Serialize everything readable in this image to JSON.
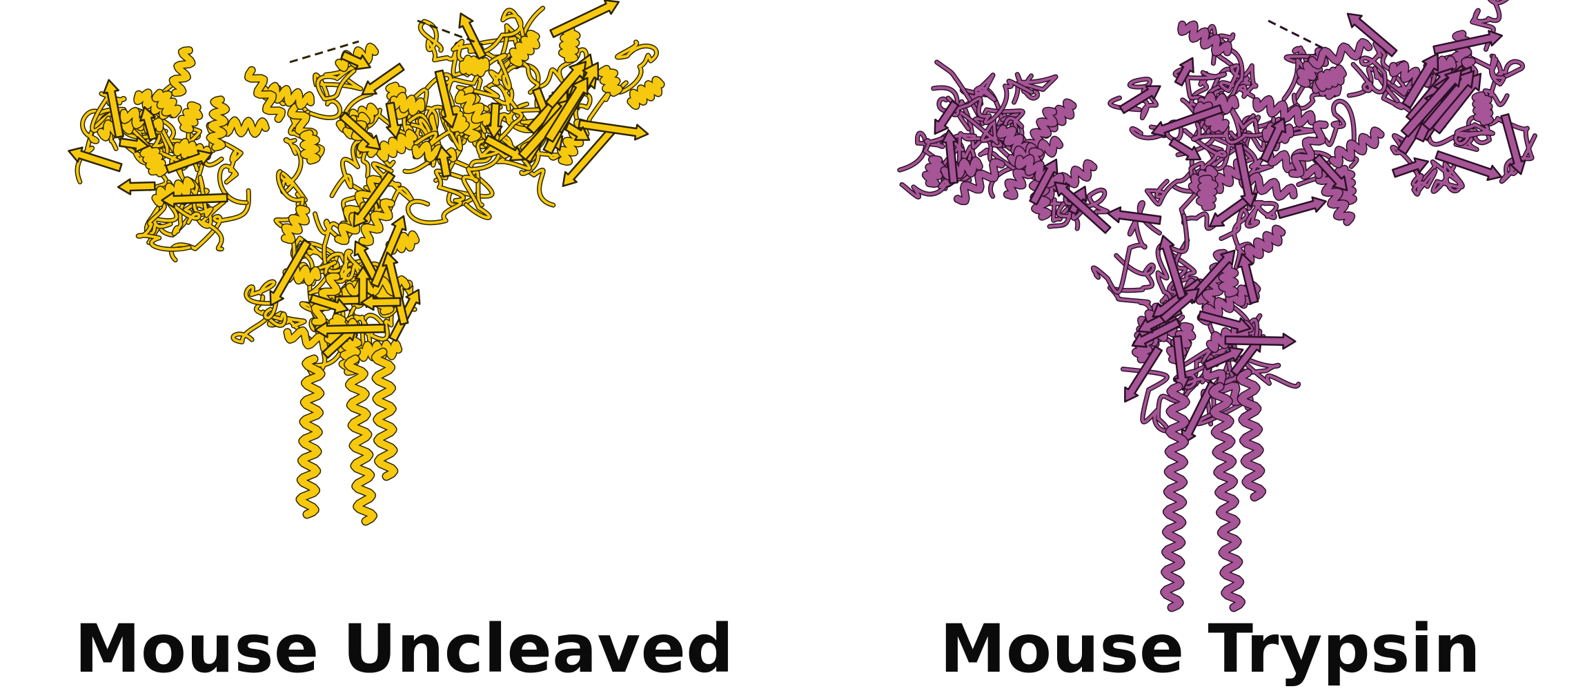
{
  "panels": [
    {
      "id": "left",
      "label": "Mouse Uncleaved",
      "color": "#f7c90e",
      "outline": "#2a2300"
    },
    {
      "id": "right",
      "label": "Mouse Trypsin",
      "color": "#a65596",
      "outline": "#2a1026"
    }
  ]
}
